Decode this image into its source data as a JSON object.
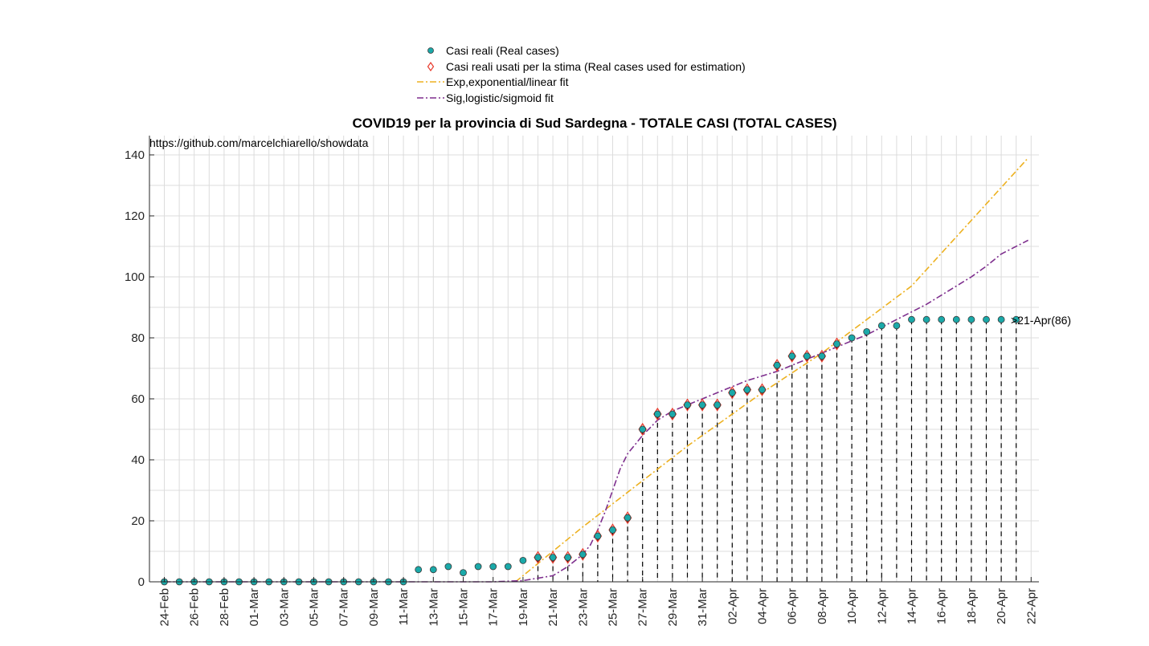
{
  "chart_data": {
    "type": "scatter",
    "title": "COVID19 per la provincia di Sud Sardegna - TOTALE CASI (TOTAL CASES)",
    "xlabel": "",
    "ylabel": "",
    "ylim": [
      0,
      145
    ],
    "yticks": [
      0,
      20,
      40,
      60,
      80,
      100,
      120,
      140
    ],
    "x_dates": [
      "24-Feb",
      "25-Feb",
      "26-Feb",
      "27-Feb",
      "28-Feb",
      "29-Feb",
      "01-Mar",
      "02-Mar",
      "03-Mar",
      "04-Mar",
      "05-Mar",
      "06-Mar",
      "07-Mar",
      "08-Mar",
      "09-Mar",
      "10-Mar",
      "11-Mar",
      "12-Mar",
      "13-Mar",
      "14-Mar",
      "15-Mar",
      "16-Mar",
      "17-Mar",
      "18-Mar",
      "19-Mar",
      "20-Mar",
      "21-Mar",
      "22-Mar",
      "23-Mar",
      "24-Mar",
      "25-Mar",
      "26-Mar",
      "27-Mar",
      "28-Mar",
      "29-Mar",
      "30-Mar",
      "31-Mar",
      "01-Apr",
      "02-Apr",
      "03-Apr",
      "04-Apr",
      "05-Apr",
      "06-Apr",
      "07-Apr",
      "08-Apr",
      "09-Apr",
      "10-Apr",
      "11-Apr",
      "12-Apr",
      "13-Apr",
      "14-Apr",
      "15-Apr",
      "16-Apr",
      "17-Apr",
      "18-Apr",
      "19-Apr",
      "20-Apr",
      "21-Apr",
      "22-Apr"
    ],
    "x_tick_labels": [
      "24-Feb",
      "26-Feb",
      "28-Feb",
      "01-Mar",
      "03-Mar",
      "05-Mar",
      "07-Mar",
      "09-Mar",
      "11-Mar",
      "13-Mar",
      "15-Mar",
      "17-Mar",
      "19-Mar",
      "21-Mar",
      "23-Mar",
      "25-Mar",
      "27-Mar",
      "29-Mar",
      "31-Mar",
      "02-Apr",
      "04-Apr",
      "06-Apr",
      "08-Apr",
      "10-Apr",
      "12-Apr",
      "14-Apr",
      "16-Apr",
      "18-Apr",
      "20-Apr",
      "22-Apr"
    ],
    "grid": true,
    "legend_position": "top-center",
    "series": [
      {
        "name": "Casi reali (Real cases)",
        "kind": "marker-dot",
        "color": "#1aa9a9",
        "values": [
          0,
          0,
          0,
          0,
          0,
          0,
          0,
          0,
          0,
          0,
          0,
          0,
          0,
          0,
          0,
          0,
          0,
          4,
          4,
          5,
          3,
          5,
          5,
          5,
          7,
          8,
          8,
          8,
          9,
          15,
          17,
          21,
          50,
          55,
          55,
          58,
          58,
          58,
          62,
          63,
          63,
          71,
          74,
          74,
          74,
          78,
          80,
          82,
          84,
          84,
          86,
          86,
          86,
          86,
          86,
          86,
          86,
          86
        ]
      },
      {
        "name": "Casi reali usati per la stima (Real cases used for estimation)",
        "kind": "marker-diamond",
        "color": "#e8392b",
        "start_date": "20-Mar",
        "values": [
          8,
          8,
          8,
          9,
          15,
          17,
          21,
          50,
          55,
          55,
          58,
          58,
          58,
          62,
          63,
          63,
          71,
          74,
          74,
          74,
          78
        ]
      },
      {
        "name": "Exp,exponential/linear fit",
        "kind": "dash-dot",
        "color": "#edb120",
        "points": [
          [
            23.5,
            0
          ],
          [
            28,
            18
          ],
          [
            35,
            44.5
          ],
          [
            40,
            62
          ],
          [
            44,
            75
          ],
          [
            50,
            97
          ],
          [
            57.8,
            139
          ]
        ]
      },
      {
        "name": "Sig,logistic/sigmoid fit",
        "kind": "dash-dot",
        "color": "#7e2f8e",
        "points": [
          [
            0,
            0
          ],
          [
            22,
            0
          ],
          [
            24,
            0.4
          ],
          [
            26,
            2
          ],
          [
            27,
            5
          ],
          [
            28,
            9
          ],
          [
            28.5,
            12
          ],
          [
            29,
            17
          ],
          [
            29.5,
            23
          ],
          [
            30,
            30
          ],
          [
            30.5,
            37
          ],
          [
            31,
            42
          ],
          [
            32,
            48
          ],
          [
            33,
            53
          ],
          [
            34,
            56
          ],
          [
            35,
            58
          ],
          [
            36,
            60
          ],
          [
            37,
            62
          ],
          [
            38,
            64
          ],
          [
            39,
            66
          ],
          [
            40,
            67.5
          ],
          [
            41,
            69
          ],
          [
            42,
            71
          ],
          [
            43,
            73
          ],
          [
            44,
            75
          ],
          [
            45,
            77
          ],
          [
            46,
            79
          ],
          [
            47,
            81
          ],
          [
            48,
            83.5
          ],
          [
            49,
            86
          ],
          [
            50,
            88.5
          ],
          [
            51,
            91
          ],
          [
            52,
            94
          ],
          [
            53,
            97
          ],
          [
            54,
            100
          ],
          [
            55,
            103.5
          ],
          [
            56,
            107.5
          ],
          [
            57.8,
            112
          ]
        ]
      }
    ],
    "annotations": {
      "source": "https://github.com/marcelchiarello/showdata",
      "last_point": ">21-Apr(86)"
    }
  }
}
